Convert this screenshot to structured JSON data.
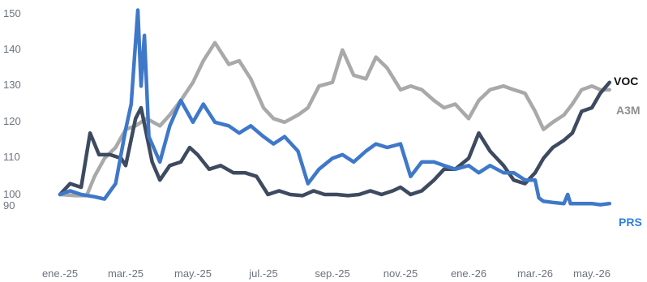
{
  "chart_data": {
    "type": "line",
    "title": "",
    "xlabel": "",
    "ylabel": "",
    "x_tick_labels": [
      "ene.-25",
      "mar.-25",
      "may.-25",
      "jul.-25",
      "sep.-25",
      "nov.-25",
      "ene.-26",
      "mar.-26",
      "may.-26"
    ],
    "y_tick_labels": [
      "90",
      "100",
      "110",
      "120",
      "130",
      "140",
      "150"
    ],
    "ylim": [
      88,
      152
    ],
    "x_range": [
      "2025-01-01",
      "2026-05-25"
    ],
    "grid": false,
    "legend": "end-of-line labels",
    "series": [
      {
        "name": "A3M",
        "color": "#a9a9a9",
        "points": [
          [
            "2025-01-01",
            100
          ],
          [
            "2025-01-15",
            99
          ],
          [
            "2025-01-25",
            99
          ],
          [
            "2025-02-01",
            105
          ],
          [
            "2025-02-10",
            110
          ],
          [
            "2025-02-20",
            113
          ],
          [
            "2025-03-01",
            118
          ],
          [
            "2025-03-10",
            119
          ],
          [
            "2025-03-20",
            121
          ],
          [
            "2025-04-01",
            119
          ],
          [
            "2025-04-10",
            122
          ],
          [
            "2025-04-20",
            126
          ],
          [
            "2025-05-01",
            131
          ],
          [
            "2025-05-10",
            137
          ],
          [
            "2025-05-20",
            142
          ],
          [
            "2025-06-01",
            136
          ],
          [
            "2025-06-10",
            137
          ],
          [
            "2025-06-20",
            132
          ],
          [
            "2025-07-01",
            124
          ],
          [
            "2025-07-10",
            121
          ],
          [
            "2025-07-20",
            120
          ],
          [
            "2025-08-01",
            122
          ],
          [
            "2025-08-10",
            124
          ],
          [
            "2025-08-20",
            130
          ],
          [
            "2025-09-01",
            131
          ],
          [
            "2025-09-10",
            140
          ],
          [
            "2025-09-20",
            133
          ],
          [
            "2025-10-01",
            132
          ],
          [
            "2025-10-10",
            138
          ],
          [
            "2025-10-20",
            135
          ],
          [
            "2025-11-01",
            129
          ],
          [
            "2025-11-10",
            130
          ],
          [
            "2025-11-20",
            129
          ],
          [
            "2025-12-01",
            126
          ],
          [
            "2025-12-10",
            124
          ],
          [
            "2025-12-20",
            125
          ],
          [
            "2026-01-01",
            121
          ],
          [
            "2026-01-10",
            126
          ],
          [
            "2026-01-20",
            129
          ],
          [
            "2026-02-01",
            130
          ],
          [
            "2026-02-10",
            129
          ],
          [
            "2026-02-20",
            128
          ],
          [
            "2026-03-01",
            123
          ],
          [
            "2026-03-10",
            118
          ],
          [
            "2026-03-20",
            120
          ],
          [
            "2026-04-01",
            122
          ],
          [
            "2026-04-10",
            125
          ],
          [
            "2026-04-20",
            129
          ],
          [
            "2026-05-01",
            130
          ],
          [
            "2026-05-10",
            129
          ],
          [
            "2026-05-20",
            129
          ]
        ]
      },
      {
        "name": "VOC",
        "color": "#3d4a5f",
        "points": [
          [
            "2025-01-01",
            100
          ],
          [
            "2025-01-10",
            103
          ],
          [
            "2025-01-20",
            102
          ],
          [
            "2025-01-28",
            117
          ],
          [
            "2025-02-05",
            111
          ],
          [
            "2025-02-15",
            111
          ],
          [
            "2025-02-25",
            110
          ],
          [
            "2025-03-01",
            108
          ],
          [
            "2025-03-10",
            121
          ],
          [
            "2025-03-15",
            124
          ],
          [
            "2025-03-25",
            109
          ],
          [
            "2025-04-01",
            104
          ],
          [
            "2025-04-10",
            108
          ],
          [
            "2025-04-20",
            109
          ],
          [
            "2025-04-28",
            113
          ],
          [
            "2025-05-05",
            111
          ],
          [
            "2025-05-15",
            107
          ],
          [
            "2025-05-25",
            108
          ],
          [
            "2025-06-05",
            106
          ],
          [
            "2025-06-15",
            106
          ],
          [
            "2025-06-25",
            105
          ],
          [
            "2025-07-05",
            100
          ],
          [
            "2025-07-15",
            101
          ],
          [
            "2025-07-25",
            100
          ],
          [
            "2025-08-05",
            99
          ],
          [
            "2025-08-15",
            101
          ],
          [
            "2025-08-25",
            100
          ],
          [
            "2025-09-05",
            100
          ],
          [
            "2025-09-15",
            99
          ],
          [
            "2025-09-25",
            100
          ],
          [
            "2025-10-05",
            101
          ],
          [
            "2025-10-15",
            100
          ],
          [
            "2025-10-25",
            101
          ],
          [
            "2025-11-01",
            102
          ],
          [
            "2025-11-10",
            100
          ],
          [
            "2025-11-20",
            101
          ],
          [
            "2025-12-01",
            104
          ],
          [
            "2025-12-10",
            107
          ],
          [
            "2025-12-20",
            107
          ],
          [
            "2026-01-01",
            110
          ],
          [
            "2026-01-10",
            117
          ],
          [
            "2026-01-20",
            112
          ],
          [
            "2026-02-01",
            108
          ],
          [
            "2026-02-10",
            104
          ],
          [
            "2026-02-20",
            103
          ],
          [
            "2026-03-01",
            106
          ],
          [
            "2026-03-10",
            110
          ],
          [
            "2026-03-20",
            113
          ],
          [
            "2026-04-01",
            115
          ],
          [
            "2026-04-10",
            117
          ],
          [
            "2026-04-20",
            123
          ],
          [
            "2026-05-01",
            124
          ],
          [
            "2026-05-10",
            128
          ],
          [
            "2026-05-20",
            131
          ]
        ]
      },
      {
        "name": "PRS",
        "color": "#3f78c9",
        "points": [
          [
            "2025-01-01",
            100
          ],
          [
            "2025-01-10",
            101
          ],
          [
            "2025-01-20",
            100
          ],
          [
            "2025-02-01",
            98
          ],
          [
            "2025-02-10",
            96
          ],
          [
            "2025-02-20",
            103
          ],
          [
            "2025-03-01",
            118
          ],
          [
            "2025-03-06",
            125
          ],
          [
            "2025-03-12",
            151
          ],
          [
            "2025-03-15",
            130
          ],
          [
            "2025-03-18",
            144
          ],
          [
            "2025-03-22",
            116
          ],
          [
            "2025-04-01",
            109
          ],
          [
            "2025-04-10",
            119
          ],
          [
            "2025-04-20",
            126
          ],
          [
            "2025-05-01",
            120
          ],
          [
            "2025-05-10",
            125
          ],
          [
            "2025-05-20",
            120
          ],
          [
            "2025-06-01",
            119
          ],
          [
            "2025-06-10",
            117
          ],
          [
            "2025-06-20",
            119
          ],
          [
            "2025-07-01",
            116
          ],
          [
            "2025-07-10",
            114
          ],
          [
            "2025-07-20",
            116
          ],
          [
            "2025-08-01",
            112
          ],
          [
            "2025-08-10",
            103
          ],
          [
            "2025-08-20",
            107
          ],
          [
            "2025-09-01",
            110
          ],
          [
            "2025-09-10",
            111
          ],
          [
            "2025-09-20",
            109
          ],
          [
            "2025-10-01",
            112
          ],
          [
            "2025-10-10",
            114
          ],
          [
            "2025-10-20",
            113
          ],
          [
            "2025-11-01",
            114
          ],
          [
            "2025-11-10",
            105
          ],
          [
            "2025-11-20",
            109
          ],
          [
            "2025-12-01",
            109
          ],
          [
            "2025-12-10",
            108
          ],
          [
            "2025-12-20",
            107
          ],
          [
            "2026-01-01",
            108
          ],
          [
            "2026-01-10",
            106
          ],
          [
            "2026-01-20",
            108
          ],
          [
            "2026-02-01",
            106
          ],
          [
            "2026-02-10",
            106
          ],
          [
            "2026-02-20",
            104
          ],
          [
            "2026-03-01",
            104
          ],
          [
            "2026-03-05",
            97
          ],
          [
            "2026-03-10",
            94
          ],
          [
            "2026-03-20",
            93
          ],
          [
            "2026-04-01",
            92
          ],
          [
            "2026-04-05",
            100
          ],
          [
            "2026-04-08",
            92
          ],
          [
            "2026-04-15",
            92
          ],
          [
            "2026-04-25",
            92
          ],
          [
            "2026-05-01",
            92
          ],
          [
            "2026-05-10",
            91
          ],
          [
            "2026-05-20",
            92
          ]
        ]
      }
    ]
  }
}
